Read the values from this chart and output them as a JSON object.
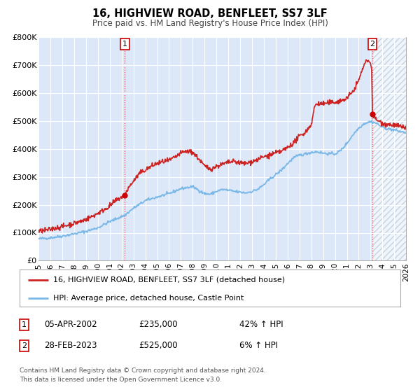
{
  "title": "16, HIGHVIEW ROAD, BENFLEET, SS7 3LF",
  "subtitle": "Price paid vs. HM Land Registry's House Price Index (HPI)",
  "plot_bg_color": "#dce8f8",
  "hpi_color": "#7ab8e8",
  "price_color": "#cc2222",
  "marker_color": "#cc0000",
  "vline_color": "#dd4444",
  "hatch_color": "#bbccdd",
  "ylim": [
    0,
    800000
  ],
  "xlim_start": 1995,
  "xlim_end": 2026,
  "xticks": [
    1995,
    1996,
    1997,
    1998,
    1999,
    2000,
    2001,
    2002,
    2003,
    2004,
    2005,
    2006,
    2007,
    2008,
    2009,
    2010,
    2011,
    2012,
    2013,
    2014,
    2015,
    2016,
    2017,
    2018,
    2019,
    2020,
    2021,
    2022,
    2023,
    2024,
    2025,
    2026
  ],
  "yticks": [
    0,
    100000,
    200000,
    300000,
    400000,
    500000,
    600000,
    700000,
    800000
  ],
  "ytick_labels": [
    "£0",
    "£100K",
    "£200K",
    "£300K",
    "£400K",
    "£500K",
    "£600K",
    "£700K",
    "£800K"
  ],
  "sale1_year": 2002.27,
  "sale1_price": 235000,
  "sale1_label": "1",
  "sale2_year": 2023.16,
  "sale2_price": 525000,
  "sale2_label": "2",
  "legend_line1": "16, HIGHVIEW ROAD, BENFLEET, SS7 3LF (detached house)",
  "legend_line2": "HPI: Average price, detached house, Castle Point",
  "table_row1_num": "1",
  "table_row1_date": "05-APR-2002",
  "table_row1_price": "£235,000",
  "table_row1_hpi": "42% ↑ HPI",
  "table_row2_num": "2",
  "table_row2_date": "28-FEB-2023",
  "table_row2_price": "£525,000",
  "table_row2_hpi": "6% ↑ HPI",
  "footer1": "Contains HM Land Registry data © Crown copyright and database right 2024.",
  "footer2": "This data is licensed under the Open Government Licence v3.0."
}
